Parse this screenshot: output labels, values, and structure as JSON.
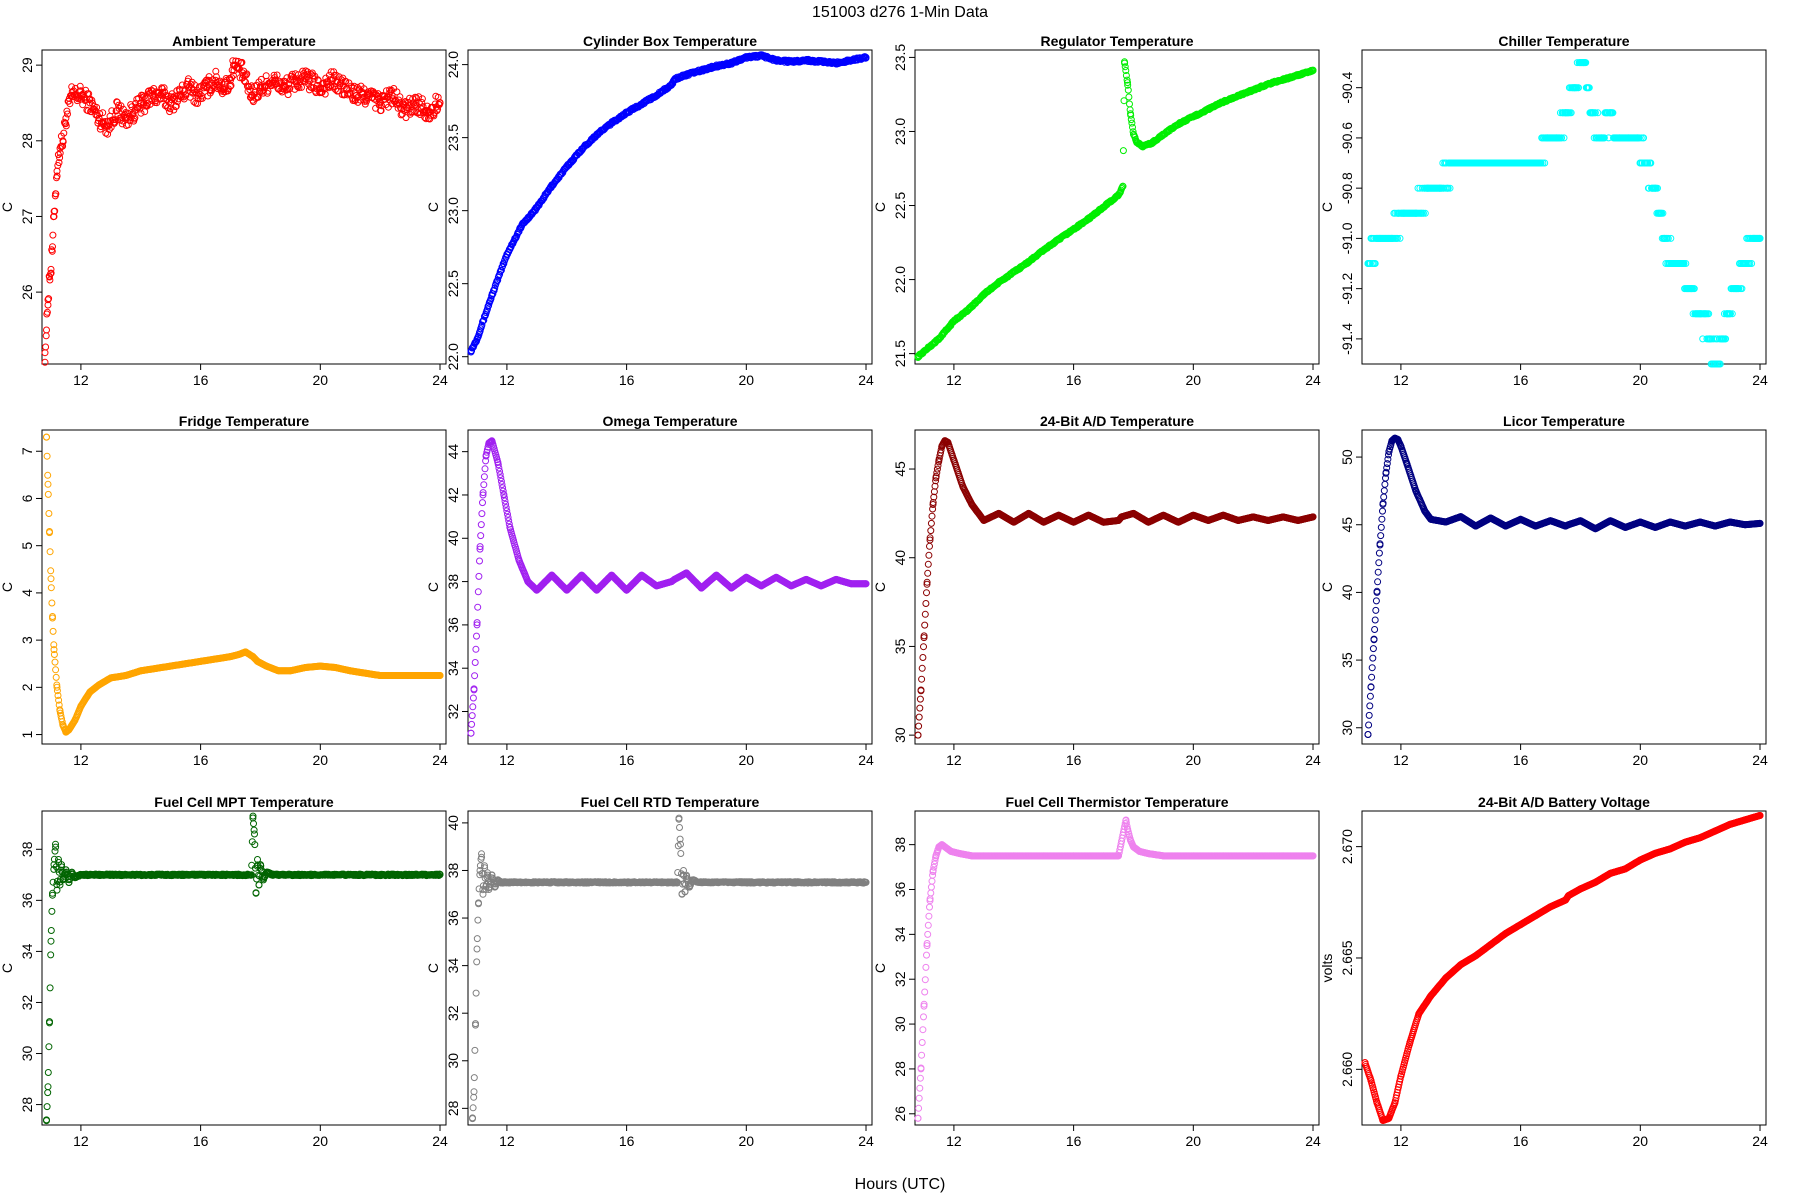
{
  "figure": {
    "title": "151003    d276    1-Min Data",
    "xlabel": "Hours (UTC)"
  },
  "chart_data": [
    {
      "type": "scatter",
      "title": "Ambient Temperature",
      "ylabel": "C",
      "color": "#ff0000",
      "xlim": [
        10.7,
        24.2
      ],
      "ylim": [
        25.05,
        29.2
      ],
      "xticks": [
        12,
        16,
        20,
        24
      ],
      "yticks": [
        26,
        27,
        28,
        29
      ],
      "x": [
        10.8,
        10.85,
        10.9,
        10.95,
        11.0,
        11.05,
        11.1,
        11.15,
        11.2,
        11.3,
        11.4,
        11.5,
        11.7,
        12.0,
        12.3,
        12.6,
        12.9,
        13.2,
        13.5,
        13.8,
        14.1,
        14.4,
        14.7,
        15.0,
        15.3,
        15.6,
        15.9,
        16.2,
        16.5,
        16.8,
        17.0,
        17.1,
        17.4,
        17.7,
        18.0,
        18.4,
        18.8,
        19.2,
        19.6,
        20.0,
        20.4,
        20.8,
        21.2,
        21.6,
        22.0,
        22.4,
        22.8,
        23.2,
        23.6,
        24.0
      ],
      "y": [
        25.2,
        25.5,
        25.9,
        26.2,
        26.3,
        26.6,
        27.0,
        27.3,
        27.6,
        27.9,
        28.0,
        28.3,
        28.6,
        28.6,
        28.5,
        28.3,
        28.2,
        28.4,
        28.3,
        28.4,
        28.5,
        28.6,
        28.6,
        28.5,
        28.6,
        28.7,
        28.6,
        28.7,
        28.8,
        28.7,
        28.8,
        29.0,
        28.9,
        28.6,
        28.7,
        28.8,
        28.7,
        28.8,
        28.8,
        28.7,
        28.8,
        28.7,
        28.6,
        28.6,
        28.5,
        28.6,
        28.4,
        28.5,
        28.4,
        28.5
      ],
      "noise": 0.13
    },
    {
      "type": "scatter",
      "title": "Cylinder Box Temperature",
      "ylabel": "C",
      "color": "#0000ff",
      "xlim": [
        10.7,
        24.2
      ],
      "ylim": [
        21.95,
        24.1
      ],
      "xticks": [
        12,
        16,
        20,
        24
      ],
      "yticks": [
        22.0,
        22.5,
        23.0,
        23.5,
        24.0
      ],
      "x": [
        10.8,
        11.0,
        11.5,
        12.0,
        12.5,
        13.0,
        13.5,
        14.0,
        14.5,
        15.0,
        15.5,
        16.0,
        16.5,
        17.0,
        17.5,
        17.6,
        18.0,
        18.5,
        19.0,
        19.5,
        20.0,
        20.5,
        21.0,
        21.5,
        22.0,
        22.5,
        23.0,
        23.5,
        24.0
      ],
      "y": [
        22.04,
        22.12,
        22.42,
        22.7,
        22.9,
        23.02,
        23.17,
        23.3,
        23.42,
        23.52,
        23.6,
        23.67,
        23.73,
        23.79,
        23.86,
        23.9,
        23.93,
        23.96,
        23.99,
        24.01,
        24.05,
        24.06,
        24.03,
        24.02,
        24.03,
        24.02,
        24.01,
        24.03,
        24.05
      ],
      "noise": 0.008
    },
    {
      "type": "scatter",
      "title": "Regulator Temperature",
      "ylabel": "C",
      "color": "#00ee00",
      "xlim": [
        10.7,
        24.2
      ],
      "ylim": [
        21.43,
        23.55
      ],
      "xticks": [
        12,
        16,
        20,
        24
      ],
      "yticks": [
        21.5,
        22.0,
        22.5,
        23.0,
        23.5
      ],
      "x": [
        10.8,
        11.5,
        12.0,
        12.5,
        13.0,
        13.5,
        14.0,
        14.5,
        15.0,
        15.5,
        16.0,
        16.5,
        17.0,
        17.5,
        17.65,
        17.7,
        17.8,
        17.9,
        18.0,
        18.1,
        18.3,
        18.6,
        19.0,
        19.5,
        20.0,
        20.5,
        21.0,
        21.5,
        22.0,
        22.5,
        23.0,
        23.5,
        24.0
      ],
      "y": [
        21.48,
        21.6,
        21.72,
        21.8,
        21.9,
        21.98,
        22.05,
        22.12,
        22.2,
        22.27,
        22.34,
        22.41,
        22.49,
        22.57,
        22.63,
        23.47,
        23.33,
        23.12,
        22.98,
        22.93,
        22.9,
        22.92,
        22.98,
        23.05,
        23.1,
        23.15,
        23.2,
        23.24,
        23.28,
        23.32,
        23.35,
        23.38,
        23.41
      ],
      "noise": 0.006
    },
    {
      "type": "scatter",
      "title": "Chiller Temperature",
      "ylabel": "C",
      "color": "#00ffff",
      "xlim": [
        10.7,
        24.2
      ],
      "ylim": [
        -91.5,
        -90.25
      ],
      "xticks": [
        12,
        16,
        20,
        24
      ],
      "yticks": [
        -91.4,
        -91.2,
        -91.0,
        -90.8,
        -90.6,
        -90.4
      ],
      "x": [
        10.9,
        11.3,
        11.7,
        12.1,
        12.5,
        12.9,
        13.3,
        13.7,
        14.1,
        14.5,
        14.9,
        15.3,
        15.7,
        16.1,
        16.5,
        16.9,
        17.2,
        17.5,
        17.8,
        18.1,
        18.4,
        18.7,
        19.0,
        19.3,
        19.6,
        19.9,
        20.2,
        20.5,
        20.8,
        21.1,
        21.4,
        21.7,
        22.0,
        22.3,
        22.6,
        22.9,
        23.2,
        23.5,
        23.8,
        24.0
      ],
      "y": [
        -91.1,
        -91.0,
        -91.0,
        -90.9,
        -90.9,
        -90.8,
        -90.8,
        -90.7,
        -90.7,
        -90.7,
        -90.7,
        -90.7,
        -90.7,
        -90.7,
        -90.7,
        -90.6,
        -90.6,
        -90.5,
        -90.4,
        -90.3,
        -90.5,
        -90.6,
        -90.5,
        -90.6,
        -90.6,
        -90.6,
        -90.7,
        -90.8,
        -91.0,
        -91.1,
        -91.1,
        -91.2,
        -91.3,
        -91.4,
        -91.5,
        -91.3,
        -91.2,
        -91.1,
        -91.0,
        -91.0
      ],
      "quantum": 0.1,
      "noise": 0.05
    },
    {
      "type": "scatter",
      "title": "Fridge Temperature",
      "ylabel": "C",
      "color": "#ffa500",
      "xlim": [
        10.7,
        24.2
      ],
      "ylim": [
        0.8,
        7.45
      ],
      "xticks": [
        12,
        16,
        20,
        24
      ],
      "yticks": [
        1,
        2,
        3,
        4,
        5,
        6,
        7
      ],
      "x": [
        10.85,
        10.9,
        10.95,
        11.0,
        11.05,
        11.1,
        11.2,
        11.3,
        11.4,
        11.5,
        11.6,
        11.8,
        12.0,
        12.3,
        12.6,
        13.0,
        13.5,
        14.0,
        14.5,
        15.0,
        15.5,
        16.0,
        16.5,
        17.0,
        17.3,
        17.5,
        17.75,
        17.9,
        18.2,
        18.6,
        19.0,
        19.5,
        20.0,
        20.5,
        21.0,
        21.5,
        22.0,
        22.5,
        23.0,
        23.5,
        24.0
      ],
      "y": [
        7.3,
        6.3,
        5.3,
        4.3,
        3.5,
        2.8,
        2.0,
        1.5,
        1.2,
        1.05,
        1.1,
        1.3,
        1.6,
        1.9,
        2.05,
        2.2,
        2.25,
        2.35,
        2.4,
        2.45,
        2.5,
        2.55,
        2.6,
        2.65,
        2.7,
        2.75,
        2.65,
        2.55,
        2.45,
        2.35,
        2.35,
        2.42,
        2.45,
        2.42,
        2.35,
        2.3,
        2.25,
        2.25,
        2.25,
        2.25,
        2.25
      ],
      "noise": 0.0
    },
    {
      "type": "scatter",
      "title": "Omega Temperature",
      "ylabel": "C",
      "color": "#a020f0",
      "xlim": [
        10.7,
        24.2
      ],
      "ylim": [
        30.5,
        45.0
      ],
      "xticks": [
        12,
        16,
        20,
        24
      ],
      "yticks": [
        32,
        34,
        36,
        38,
        40,
        42,
        44
      ],
      "x": [
        10.8,
        10.9,
        11.0,
        11.1,
        11.2,
        11.3,
        11.4,
        11.5,
        11.7,
        11.9,
        12.1,
        12.4,
        12.7,
        13.0,
        13.5,
        14.0,
        14.5,
        15.0,
        15.5,
        16.0,
        16.5,
        17.0,
        17.5,
        17.6,
        18.0,
        18.5,
        19.0,
        19.5,
        20.0,
        20.5,
        21.0,
        21.5,
        22.0,
        22.5,
        23.0,
        23.5,
        24.0
      ],
      "y": [
        31.0,
        33.0,
        36.0,
        39.5,
        42.0,
        43.8,
        44.4,
        44.5,
        43.5,
        42.0,
        40.5,
        39.0,
        38.0,
        37.6,
        38.3,
        37.6,
        38.3,
        37.6,
        38.3,
        37.6,
        38.3,
        37.8,
        38.0,
        38.1,
        38.4,
        37.7,
        38.3,
        37.7,
        38.2,
        37.8,
        38.2,
        37.8,
        38.1,
        37.8,
        38.1,
        37.9,
        37.9
      ],
      "noise": 0.0
    },
    {
      "type": "scatter",
      "title": "24-Bit A/D Temperature",
      "ylabel": "C",
      "color": "#8b0000",
      "xlim": [
        10.7,
        24.2
      ],
      "ylim": [
        29.5,
        47.2
      ],
      "xticks": [
        12,
        16,
        20,
        24
      ],
      "yticks": [
        30,
        35,
        40,
        45
      ],
      "x": [
        10.8,
        10.9,
        11.0,
        11.1,
        11.2,
        11.3,
        11.4,
        11.5,
        11.6,
        11.7,
        11.8,
        12.0,
        12.3,
        12.6,
        13.0,
        13.5,
        14.0,
        14.5,
        15.0,
        15.5,
        16.0,
        16.5,
        17.0,
        17.5,
        17.6,
        18.0,
        18.5,
        19.0,
        19.5,
        20.0,
        20.5,
        21.0,
        21.5,
        22.0,
        22.5,
        23.0,
        23.5,
        24.0
      ],
      "y": [
        30.0,
        32.5,
        35.5,
        38.5,
        41.0,
        43.0,
        44.5,
        45.5,
        46.3,
        46.6,
        46.5,
        45.5,
        44.0,
        43.0,
        42.1,
        42.5,
        42.0,
        42.5,
        42.0,
        42.4,
        42.0,
        42.4,
        42.0,
        42.1,
        42.3,
        42.5,
        42.0,
        42.4,
        42.0,
        42.4,
        42.1,
        42.4,
        42.1,
        42.3,
        42.1,
        42.3,
        42.1,
        42.3
      ],
      "noise": 0.0
    },
    {
      "type": "scatter",
      "title": "Licor Temperature",
      "ylabel": "C",
      "color": "#000080",
      "xlim": [
        10.7,
        24.2
      ],
      "ylim": [
        28.8,
        52.0
      ],
      "xticks": [
        12,
        16,
        20,
        24
      ],
      "yticks": [
        30,
        35,
        40,
        45,
        50
      ],
      "x": [
        10.9,
        11.0,
        11.1,
        11.2,
        11.3,
        11.4,
        11.5,
        11.6,
        11.7,
        11.8,
        11.9,
        12.0,
        12.2,
        12.5,
        12.8,
        13.0,
        13.5,
        14.0,
        14.5,
        15.0,
        15.5,
        16.0,
        16.5,
        17.0,
        17.5,
        17.6,
        18.0,
        18.5,
        19.0,
        19.5,
        20.0,
        20.5,
        21.0,
        21.5,
        22.0,
        22.5,
        23.0,
        23.5,
        24.0
      ],
      "y": [
        29.5,
        33.0,
        36.5,
        40.0,
        43.5,
        46.5,
        48.8,
        50.4,
        51.2,
        51.4,
        51.3,
        50.8,
        49.5,
        47.5,
        46.0,
        45.4,
        45.2,
        45.6,
        44.9,
        45.5,
        44.9,
        45.4,
        44.9,
        45.3,
        44.9,
        45.0,
        45.3,
        44.7,
        45.3,
        44.8,
        45.2,
        44.8,
        45.2,
        44.9,
        45.2,
        44.9,
        45.2,
        45.0,
        45.1
      ],
      "noise": 0.0
    },
    {
      "type": "scatter",
      "title": "Fuel Cell MPT Temperature",
      "ylabel": "C",
      "color": "#006400",
      "xlim": [
        10.7,
        24.2
      ],
      "ylim": [
        27.2,
        39.5
      ],
      "xticks": [
        12,
        16,
        20,
        24
      ],
      "yticks": [
        28,
        30,
        32,
        34,
        36,
        38
      ],
      "x": [
        10.85,
        10.9,
        10.95,
        11.0,
        11.05,
        11.1,
        11.15,
        11.2,
        11.25,
        11.3,
        11.35,
        11.4,
        11.5,
        11.6,
        11.7,
        11.8,
        12.0,
        13.0,
        14.0,
        15.0,
        16.0,
        17.0,
        17.6,
        17.7,
        17.75,
        17.8,
        17.85,
        17.9,
        17.95,
        18.0,
        18.1,
        18.2,
        18.4,
        19.0,
        20.0,
        21.0,
        22.0,
        23.0,
        24.0
      ],
      "y": [
        27.4,
        28.7,
        31.2,
        34.4,
        36.2,
        37.4,
        38.2,
        36.4,
        37.6,
        36.6,
        37.4,
        36.8,
        37.2,
        36.7,
        37.1,
        36.9,
        37.0,
        37.0,
        37.0,
        37.0,
        37.0,
        37.0,
        37.0,
        37.0,
        39.3,
        38.6,
        36.3,
        37.6,
        36.6,
        37.4,
        36.8,
        37.1,
        37.0,
        37.0,
        37.0,
        37.0,
        37.0,
        37.0,
        37.0
      ],
      "noise": 0.03
    },
    {
      "type": "scatter",
      "title": "Fuel Cell RTD Temperature",
      "ylabel": "C",
      "color": "#808080",
      "xlim": [
        10.7,
        24.2
      ],
      "ylim": [
        27.3,
        40.5
      ],
      "xticks": [
        12,
        16,
        20,
        24
      ],
      "yticks": [
        28,
        30,
        32,
        34,
        36,
        38,
        40
      ],
      "x": [
        10.85,
        10.9,
        10.95,
        11.0,
        11.05,
        11.1,
        11.15,
        11.2,
        11.25,
        11.3,
        11.35,
        11.4,
        11.5,
        11.6,
        11.7,
        11.8,
        12.0,
        13.0,
        14.0,
        15.0,
        16.0,
        17.0,
        17.6,
        17.7,
        17.75,
        17.8,
        17.85,
        17.9,
        17.95,
        18.0,
        18.1,
        18.2,
        18.4,
        19.0,
        20.0,
        21.0,
        22.0,
        23.0,
        24.0
      ],
      "y": [
        27.6,
        28.7,
        31.5,
        34.7,
        36.6,
        38.0,
        38.7,
        37.0,
        38.2,
        37.2,
        37.9,
        37.2,
        37.8,
        37.3,
        37.6,
        37.5,
        37.5,
        37.5,
        37.5,
        37.5,
        37.5,
        37.5,
        37.5,
        37.5,
        40.2,
        39.1,
        37.0,
        38.0,
        37.1,
        37.8,
        37.3,
        37.6,
        37.5,
        37.5,
        37.5,
        37.5,
        37.5,
        37.5,
        37.5
      ],
      "noise": 0.03
    },
    {
      "type": "scatter",
      "title": "Fuel Cell Thermistor Temperature",
      "ylabel": "C",
      "color": "#ee82ee",
      "xlim": [
        10.7,
        24.2
      ],
      "ylim": [
        25.5,
        39.5
      ],
      "xticks": [
        12,
        16,
        20,
        24
      ],
      "yticks": [
        26,
        28,
        30,
        32,
        34,
        36,
        38
      ],
      "x": [
        10.8,
        10.9,
        11.0,
        11.1,
        11.2,
        11.3,
        11.4,
        11.5,
        11.6,
        11.7,
        11.9,
        12.2,
        12.6,
        13.0,
        14.0,
        15.0,
        16.0,
        17.0,
        17.5,
        17.75,
        17.8,
        17.9,
        18.0,
        18.2,
        18.5,
        19.0,
        20.0,
        21.0,
        22.0,
        23.0,
        24.0
      ],
      "y": [
        25.8,
        28.0,
        30.8,
        33.5,
        35.5,
        36.8,
        37.5,
        37.9,
        38.0,
        37.9,
        37.7,
        37.6,
        37.5,
        37.5,
        37.5,
        37.5,
        37.5,
        37.5,
        37.5,
        39.1,
        38.7,
        38.2,
        37.9,
        37.7,
        37.6,
        37.5,
        37.5,
        37.5,
        37.5,
        37.5,
        37.5
      ],
      "noise": 0.0
    },
    {
      "type": "scatter",
      "title": "24-Bit A/D Battery Voltage",
      "ylabel": "volts",
      "color": "#ff0000",
      "xlim": [
        10.7,
        24.2
      ],
      "ylim": [
        2.6575,
        2.6716
      ],
      "xticks": [
        12,
        16,
        20,
        24
      ],
      "yticks": [
        2.66,
        2.665,
        2.67
      ],
      "x": [
        10.8,
        11.0,
        11.2,
        11.4,
        11.6,
        11.8,
        12.0,
        12.3,
        12.6,
        13.0,
        13.5,
        14.0,
        14.5,
        15.0,
        15.5,
        16.0,
        16.5,
        17.0,
        17.5,
        17.6,
        18.0,
        18.5,
        19.0,
        19.5,
        20.0,
        20.5,
        21.0,
        21.5,
        22.0,
        22.5,
        23.0,
        23.5,
        24.0
      ],
      "y": [
        2.6603,
        2.6595,
        2.6585,
        2.6577,
        2.6578,
        2.6585,
        2.6597,
        2.6612,
        2.6625,
        2.6633,
        2.6641,
        2.6647,
        2.6651,
        2.6656,
        2.6661,
        2.6665,
        2.6669,
        2.6673,
        2.6676,
        2.6678,
        2.6681,
        2.6684,
        2.6688,
        2.669,
        2.6694,
        2.6697,
        2.6699,
        2.6702,
        2.6704,
        2.6707,
        2.671,
        2.6712,
        2.6714
      ],
      "noise": 0.0
    }
  ]
}
